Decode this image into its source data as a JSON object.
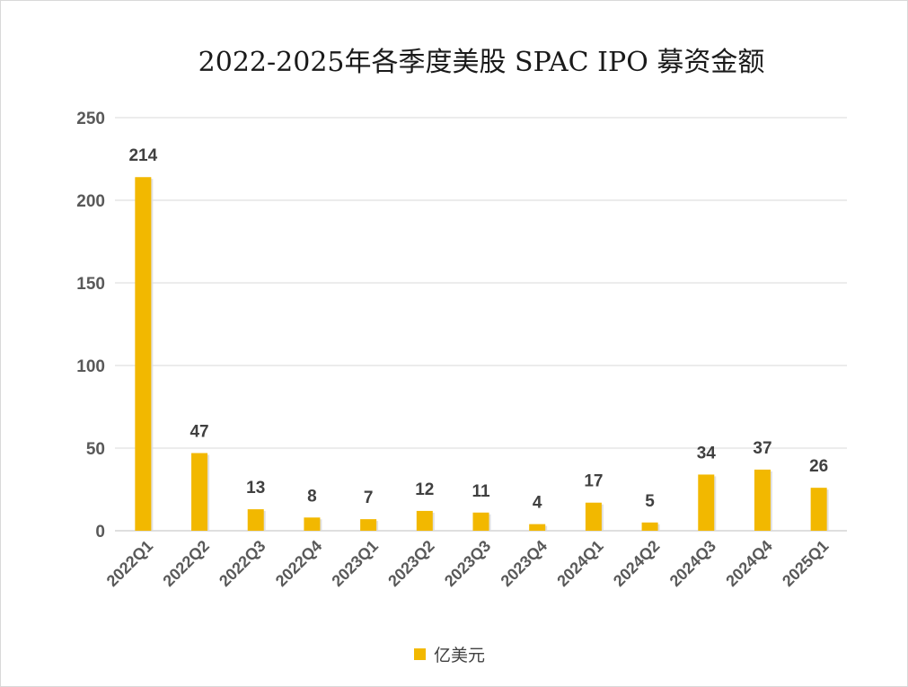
{
  "chart_data": {
    "type": "bar",
    "title": "2022-2025年各季度美股 SPAC IPO 募资金额",
    "xlabel": "",
    "ylabel": "",
    "ylim": [
      0,
      250
    ],
    "yticks": [
      0,
      50,
      100,
      150,
      200,
      250
    ],
    "grid": true,
    "legend_position": "bottom",
    "categories": [
      "2022Q1",
      "2022Q2",
      "2022Q3",
      "2022Q4",
      "2023Q1",
      "2023Q2",
      "2023Q3",
      "2023Q4",
      "2024Q1",
      "2024Q2",
      "2024Q3",
      "2024Q4",
      "2025Q1"
    ],
    "series": [
      {
        "name": "亿美元",
        "color": "#f2b800",
        "values": [
          214,
          47,
          13,
          8,
          7,
          12,
          11,
          4,
          17,
          5,
          34,
          37,
          26
        ]
      }
    ]
  }
}
